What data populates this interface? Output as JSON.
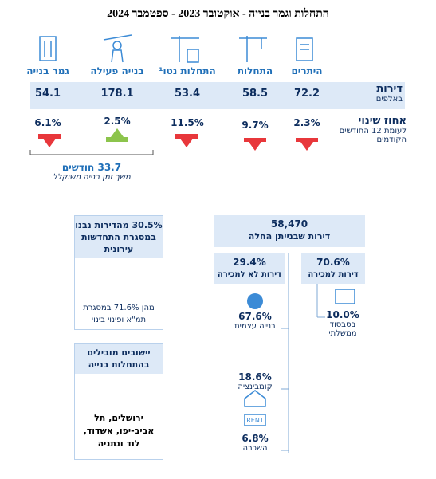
{
  "title": "התחלות וגמר בנייה - אוקטובר 2023 - ספטמבר 2024",
  "table": {
    "columns": [
      "היתרים",
      "התחלות",
      "התחלות נטו¹",
      "בנייה פעילה",
      "גמר בנייה"
    ],
    "rows": [
      {
        "label": "דירות",
        "sublabel": "באלפים",
        "values": [
          "72.2",
          "58.5",
          "53.4",
          "178.1",
          "54.1"
        ]
      },
      {
        "label": "אחוז שינוי",
        "sublabel": "לעומת 12 החודשים הקודמים",
        "values": [
          "2.3%",
          "9.7%",
          "11.5%",
          "2.5%",
          "6.1%"
        ]
      }
    ]
  },
  "duration": {
    "value": "33.7 חודשים",
    "label": "משך זמן בנייה משוקלל"
  },
  "urban_renewal": {
    "header": "30.5% מהדירות נבנו במסגרת התחדשות עירונית",
    "text": "מהן 71.6% במסגרת תמ\"א ופינוי בינוי"
  },
  "leading": {
    "header": "יישובים מובילים בהתחלות בנייה",
    "text": "ירושלים, תל אביב-יפו, אשדוד, לוד ונתניה"
  },
  "starts": {
    "value": "58,470",
    "label": "דירות שבנייתן החלה",
    "for_sale": {
      "value": "70.6%",
      "label": "דירות למכירה"
    },
    "not_for_sale": {
      "value": "29.4%",
      "label": "דירות לא למכירה"
    },
    "subsidized": {
      "value": "10.0%",
      "label": "בסבסוד ממשלתי"
    },
    "self_build": {
      "value": "67.6%",
      "label": "בנייה עצמית"
    },
    "combination": {
      "value": "18.6%",
      "label": "קומבינציה"
    },
    "rent": {
      "value": "6.8%",
      "label": "השכרה"
    }
  }
}
